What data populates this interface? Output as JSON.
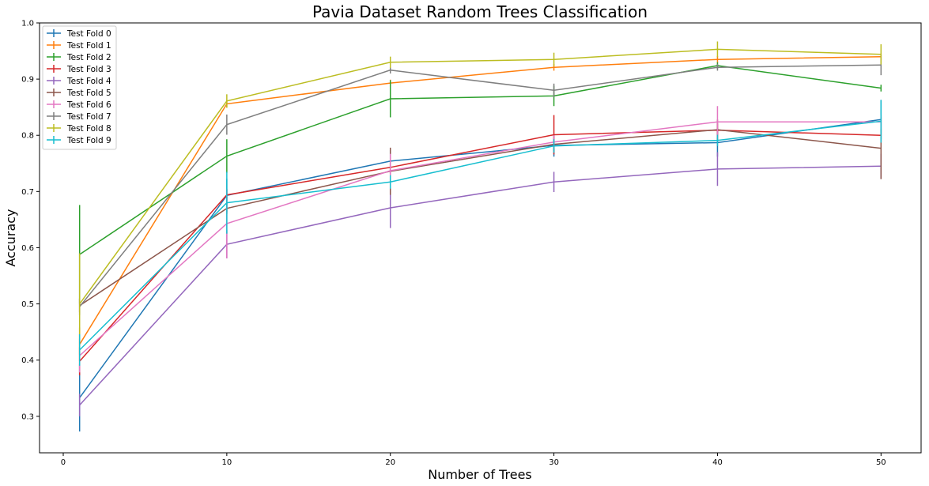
{
  "chart_data": {
    "type": "line",
    "title": "Pavia Dataset Random Trees Classification",
    "xlabel": "Number of Trees",
    "ylabel": "Accuracy",
    "x": [
      1,
      10,
      20,
      30,
      40,
      50
    ],
    "xlim": [
      -1.45,
      52.45
    ],
    "ylim": [
      0.235,
      1.0
    ],
    "xticks": [
      0,
      10,
      20,
      30,
      40,
      50
    ],
    "yticks": [
      0.3,
      0.4,
      0.5,
      0.6,
      0.7,
      0.8,
      0.9,
      1.0
    ],
    "xtick_labels": [
      "0",
      "10",
      "20",
      "30",
      "40",
      "50"
    ],
    "ytick_labels": [
      "0.3",
      "0.4",
      "0.5",
      "0.6",
      "0.7",
      "0.8",
      "0.9",
      "1.0"
    ],
    "grid": false,
    "legend_position": "top-left",
    "error_bars": true,
    "series": [
      {
        "name": "Test Fold 0",
        "color": "#1f77b4",
        "values": [
          0.333,
          0.693,
          0.754,
          0.782,
          0.787,
          0.828
        ],
        "errors": [
          0.06,
          0.03,
          0.02,
          0.02,
          0.025,
          0.035
        ]
      },
      {
        "name": "Test Fold 1",
        "color": "#ff7f0e",
        "values": [
          0.428,
          0.856,
          0.893,
          0.921,
          0.935,
          0.94
        ],
        "errors": [
          0.03,
          0.006,
          0.006,
          0.006,
          0.006,
          0.006
        ]
      },
      {
        "name": "Test Fold 2",
        "color": "#2ca02c",
        "values": [
          0.588,
          0.763,
          0.865,
          0.87,
          0.924,
          0.884
        ],
        "errors": [
          0.088,
          0.03,
          0.033,
          0.018,
          0.006,
          0.006
        ]
      },
      {
        "name": "Test Fold 3",
        "color": "#d62728",
        "values": [
          0.398,
          0.694,
          0.743,
          0.801,
          0.809,
          0.8
        ],
        "errors": [
          0.025,
          0.01,
          0.012,
          0.035,
          0.012,
          0.012
        ]
      },
      {
        "name": "Test Fold 4",
        "color": "#9467bd",
        "values": [
          0.32,
          0.606,
          0.671,
          0.717,
          0.74,
          0.745
        ],
        "errors": [
          0.02,
          0.025,
          0.036,
          0.018,
          0.03,
          0.022
        ]
      },
      {
        "name": "Test Fold 5",
        "color": "#8c564b",
        "values": [
          0.497,
          0.67,
          0.736,
          0.784,
          0.81,
          0.777
        ],
        "errors": [
          0.012,
          0.01,
          0.042,
          0.012,
          0.018,
          0.055
        ]
      },
      {
        "name": "Test Fold 6",
        "color": "#e377c2",
        "values": [
          0.408,
          0.643,
          0.737,
          0.788,
          0.824,
          0.824
        ],
        "errors": [
          0.03,
          0.062,
          0.03,
          0.012,
          0.028,
          0.012
        ]
      },
      {
        "name": "Test Fold 7",
        "color": "#7f7f7f",
        "values": [
          0.495,
          0.819,
          0.916,
          0.88,
          0.921,
          0.925
        ],
        "errors": [
          0.015,
          0.018,
          0.006,
          0.012,
          0.006,
          0.018
        ]
      },
      {
        "name": "Test Fold 8",
        "color": "#bcbd22",
        "values": [
          0.5,
          0.861,
          0.93,
          0.935,
          0.953,
          0.944
        ],
        "errors": [
          0.09,
          0.012,
          0.01,
          0.012,
          0.014,
          0.018
        ]
      },
      {
        "name": "Test Fold 9",
        "color": "#17becf",
        "values": [
          0.418,
          0.68,
          0.717,
          0.781,
          0.791,
          0.825
        ],
        "errors": [
          0.028,
          0.055,
          0.012,
          0.012,
          0.01,
          0.038
        ]
      }
    ]
  }
}
